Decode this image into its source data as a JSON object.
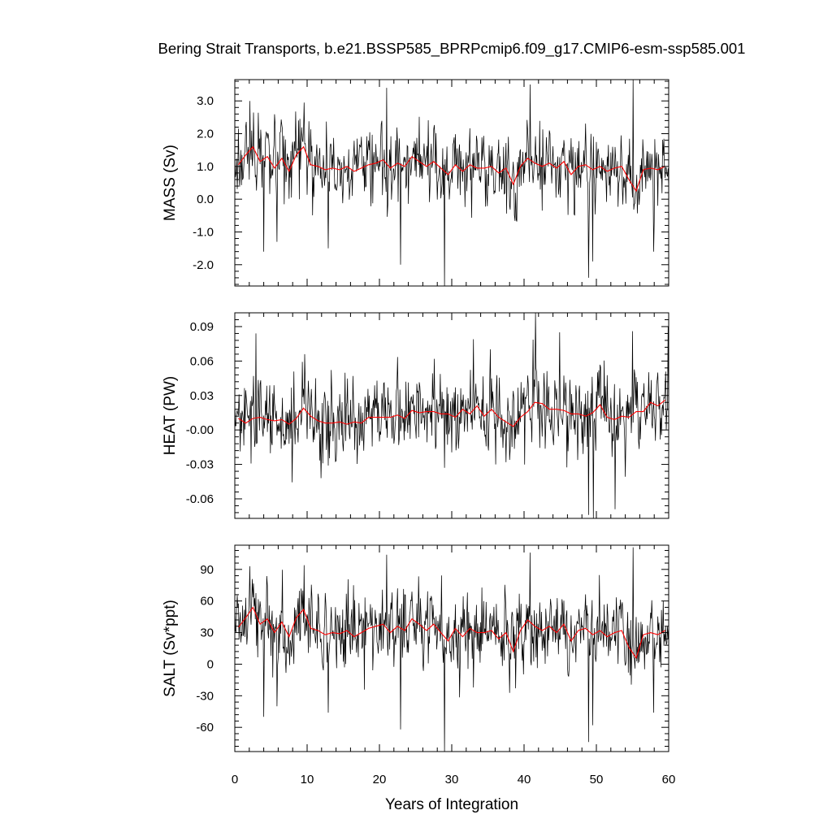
{
  "title": "Bering Strait Transports, b.e21.BSSP585_BPRPcmip6.f09_g17.CMIP6-esm-ssp585.001",
  "chart_data": {
    "type": "line",
    "x": {
      "label": "Years of Integration",
      "range": [
        0,
        60
      ],
      "major_ticks": [
        0,
        10,
        20,
        30,
        40,
        50,
        60
      ],
      "tick_labels": [
        "0",
        "10",
        "20",
        "30",
        "40",
        "50",
        "60"
      ],
      "minor_step": 2
    },
    "grid": false,
    "legend": "none",
    "colors": {
      "monthly": "#000000",
      "annual": "#ff0000"
    },
    "panels": [
      {
        "id": "mass",
        "ylabel": "MASS (Sv)",
        "ylim": [
          -2.65,
          3.65
        ],
        "ticks": [
          3.0,
          2.0,
          1.0,
          0.0,
          -1.0,
          -2.0
        ],
        "tick_labels": [
          "3.0",
          "2.0",
          "1.0",
          "0.0",
          "-1.0",
          "-2.0"
        ],
        "minor_step": 0.2,
        "monthly": {
          "base": 1.05,
          "sd": 0.62,
          "seed": 17,
          "spikes": [
            [
              2.1,
              3.0
            ],
            [
              4.0,
              -1.6
            ],
            [
              5.8,
              -1.3
            ],
            [
              9.6,
              2.95
            ],
            [
              12.9,
              -1.5
            ],
            [
              21.0,
              3.4
            ],
            [
              22.9,
              -2.0
            ],
            [
              29.0,
              -2.65
            ],
            [
              40.8,
              3.5
            ],
            [
              48.9,
              -2.4
            ],
            [
              49.5,
              -1.9
            ],
            [
              55.1,
              3.65
            ],
            [
              57.9,
              -1.6
            ]
          ]
        },
        "annual": {
          "x": [
            0.5,
            1.5,
            2.5,
            3.5,
            4.5,
            5.5,
            6.5,
            7.5,
            8.5,
            9.5,
            10.5,
            11.5,
            12.5,
            13.5,
            14.5,
            15.5,
            16.5,
            17.5,
            18.5,
            19.5,
            20.5,
            21.5,
            22.5,
            23.5,
            24.5,
            25.5,
            26.5,
            27.5,
            28.5,
            29.5,
            30.5,
            31.5,
            32.5,
            33.5,
            34.5,
            35.5,
            36.5,
            37.5,
            38.5,
            39.5,
            40.5,
            41.5,
            42.5,
            43.5,
            44.5,
            45.5,
            46.5,
            47.5,
            48.5,
            49.5,
            50.5,
            51.5,
            52.5,
            53.5,
            54.5,
            55.5,
            56.5,
            57.5,
            58.5,
            59.5
          ],
          "y": [
            1.05,
            1.35,
            1.6,
            1.15,
            1.3,
            0.95,
            1.25,
            0.85,
            1.35,
            1.6,
            1.05,
            1.0,
            0.9,
            0.95,
            0.9,
            1.0,
            0.85,
            0.95,
            1.05,
            1.1,
            1.2,
            0.95,
            1.1,
            1.0,
            1.3,
            1.15,
            1.0,
            1.15,
            0.95,
            0.75,
            1.05,
            0.85,
            1.05,
            0.95,
            0.95,
            1.0,
            0.8,
            0.95,
            0.45,
            1.0,
            1.25,
            1.1,
            1.0,
            1.1,
            0.95,
            1.15,
            0.75,
            1.0,
            1.05,
            0.9,
            1.0,
            0.85,
            0.95,
            1.0,
            0.6,
            0.25,
            0.9,
            0.95,
            0.9,
            1.0
          ]
        }
      },
      {
        "id": "heat",
        "ylabel": "HEAT (PW)",
        "ylim": [
          -0.077,
          0.102
        ],
        "ticks": [
          0.09,
          0.06,
          0.03,
          -0.0,
          -0.03,
          -0.06
        ],
        "tick_labels": [
          "0.09",
          "0.06",
          "0.03",
          "-0.00",
          "-0.03",
          "-0.06"
        ],
        "minor_step": 0.006,
        "monthly": {
          "base": 0.014,
          "sd": 0.019,
          "seed": 29,
          "spikes": [
            [
              2.9,
              0.084
            ],
            [
              9.7,
              0.066
            ],
            [
              12.9,
              -0.031
            ],
            [
              29.0,
              -0.033
            ],
            [
              33.0,
              0.079
            ],
            [
              36.1,
              -0.03
            ],
            [
              41.6,
              0.102
            ],
            [
              44.9,
              0.085
            ],
            [
              48.9,
              -0.074
            ],
            [
              49.6,
              -0.077
            ],
            [
              52.6,
              -0.069
            ],
            [
              55.0,
              0.086
            ],
            [
              59.9,
              0.09
            ]
          ]
        },
        "annual": {
          "x": [
            0.5,
            1.5,
            2.5,
            3.5,
            4.5,
            5.5,
            6.5,
            7.5,
            8.5,
            9.5,
            10.5,
            11.5,
            12.5,
            13.5,
            14.5,
            15.5,
            16.5,
            17.5,
            18.5,
            19.5,
            20.5,
            21.5,
            22.5,
            23.5,
            24.5,
            25.5,
            26.5,
            27.5,
            28.5,
            29.5,
            30.5,
            31.5,
            32.5,
            33.5,
            34.5,
            35.5,
            36.5,
            37.5,
            38.5,
            39.5,
            40.5,
            41.5,
            42.5,
            43.5,
            44.5,
            45.5,
            46.5,
            47.5,
            48.5,
            49.5,
            50.5,
            51.5,
            52.5,
            53.5,
            54.5,
            55.5,
            56.5,
            57.5,
            58.5,
            59.5
          ],
          "y": [
            0.01,
            0.006,
            0.01,
            0.011,
            0.009,
            0.008,
            0.009,
            0.005,
            0.01,
            0.019,
            0.012,
            0.008,
            0.006,
            0.006,
            0.007,
            0.005,
            0.007,
            0.006,
            0.011,
            0.011,
            0.011,
            0.011,
            0.013,
            0.01,
            0.017,
            0.015,
            0.016,
            0.016,
            0.014,
            0.014,
            0.011,
            0.018,
            0.014,
            0.021,
            0.012,
            0.018,
            0.011,
            0.007,
            0.003,
            0.011,
            0.016,
            0.024,
            0.023,
            0.018,
            0.018,
            0.017,
            0.014,
            0.014,
            0.012,
            0.015,
            0.022,
            0.011,
            0.009,
            0.012,
            0.011,
            0.016,
            0.016,
            0.024,
            0.021,
            0.026
          ]
        }
      },
      {
        "id": "salt",
        "ylabel": "SALT (Sv*ppt)",
        "ylim": [
          -83,
          113
        ],
        "ticks": [
          90,
          60,
          30,
          0,
          -30,
          -60
        ],
        "tick_labels": [
          "90",
          "60",
          "30",
          "0",
          "-30",
          "-60"
        ],
        "minor_step": 6,
        "monthly": {
          "base": 35,
          "sd": 21,
          "seed": 41,
          "spikes": [
            [
              2.1,
              93
            ],
            [
              4.0,
              -50
            ],
            [
              5.8,
              -40
            ],
            [
              9.6,
              94
            ],
            [
              12.9,
              -46
            ],
            [
              21.0,
              104
            ],
            [
              22.9,
              -62
            ],
            [
              29.0,
              -83
            ],
            [
              40.8,
              106
            ],
            [
              48.9,
              -74
            ],
            [
              49.5,
              -58
            ],
            [
              55.1,
              111
            ],
            [
              57.9,
              -46
            ]
          ]
        },
        "annual": {
          "x": [
            0.5,
            1.5,
            2.5,
            3.5,
            4.5,
            5.5,
            6.5,
            7.5,
            8.5,
            9.5,
            10.5,
            11.5,
            12.5,
            13.5,
            14.5,
            15.5,
            16.5,
            17.5,
            18.5,
            19.5,
            20.5,
            21.5,
            22.5,
            23.5,
            24.5,
            25.5,
            26.5,
            27.5,
            28.5,
            29.5,
            30.5,
            31.5,
            32.5,
            33.5,
            34.5,
            35.5,
            36.5,
            37.5,
            38.5,
            39.5,
            40.5,
            41.5,
            42.5,
            43.5,
            44.5,
            45.5,
            46.5,
            47.5,
            48.5,
            49.5,
            50.5,
            51.5,
            52.5,
            53.5,
            54.5,
            55.5,
            56.5,
            57.5,
            58.5,
            59.5
          ],
          "y": [
            35,
            44,
            54,
            38,
            43,
            30,
            40,
            26,
            44,
            52,
            34,
            32,
            28,
            30,
            29,
            32,
            26,
            30,
            34,
            36,
            38,
            30,
            36,
            32,
            43,
            38,
            32,
            38,
            30,
            22,
            34,
            26,
            34,
            30,
            30,
            32,
            24,
            30,
            12,
            32,
            42,
            36,
            32,
            36,
            30,
            38,
            22,
            32,
            34,
            28,
            32,
            26,
            30,
            32,
            16,
            6,
            28,
            30,
            28,
            32
          ]
        }
      }
    ]
  }
}
